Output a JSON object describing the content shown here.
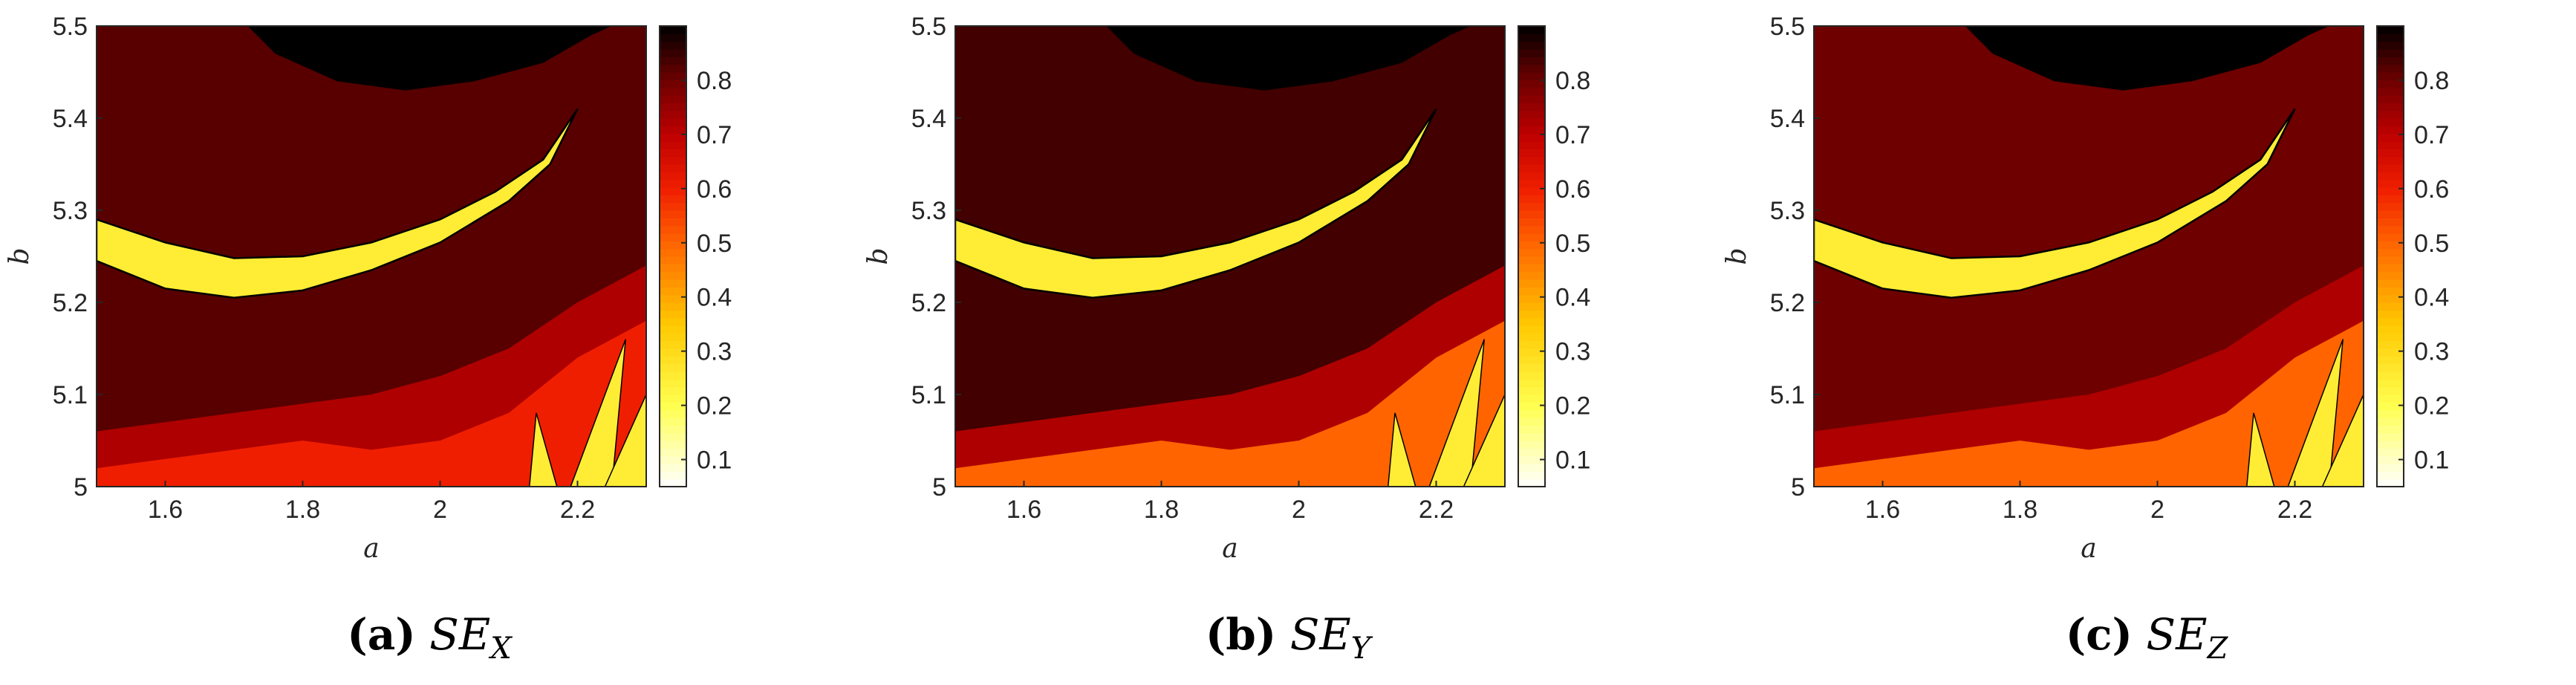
{
  "chart_data": [
    {
      "type": "heatmap",
      "panel_tag": "(a)",
      "measure_symbol": "SE",
      "measure_subscript": "X",
      "xlabel": "a",
      "ylabel": "b",
      "xlim": [
        1.5,
        2.3
      ],
      "ylim": [
        5.0,
        5.5
      ],
      "x_ticks": [
        "1.6",
        "1.8",
        "2",
        "2.2"
      ],
      "y_ticks": [
        "5",
        "5.1",
        "5.2",
        "5.3",
        "5.4",
        "5.5"
      ],
      "colorbar": {
        "range": [
          0.05,
          0.9
        ],
        "ticks": [
          "0.1",
          "0.2",
          "0.3",
          "0.4",
          "0.5",
          "0.6",
          "0.7",
          "0.8"
        ],
        "colormap": "hot-reversed"
      },
      "regions": {
        "top_black_cap_value": 0.9,
        "background_value": 0.82,
        "lower_band_value": 0.72,
        "bottom_band_value": 0.6,
        "crescent_value": 0.25
      }
    },
    {
      "type": "heatmap",
      "panel_tag": "(b)",
      "measure_symbol": "SE",
      "measure_subscript": "Y",
      "xlabel": "a",
      "ylabel": "b",
      "xlim": [
        1.5,
        2.3
      ],
      "ylim": [
        5.0,
        5.5
      ],
      "x_ticks": [
        "1.6",
        "1.8",
        "2",
        "2.2"
      ],
      "y_ticks": [
        "5",
        "5.1",
        "5.2",
        "5.3",
        "5.4",
        "5.5"
      ],
      "colorbar": {
        "range": [
          0.05,
          0.9
        ],
        "ticks": [
          "0.1",
          "0.2",
          "0.3",
          "0.4",
          "0.5",
          "0.6",
          "0.7",
          "0.8"
        ],
        "colormap": "hot-reversed"
      },
      "regions": {
        "top_black_cap_value": 0.9,
        "background_value": 0.84,
        "lower_band_value": 0.72,
        "bottom_band_value": 0.5,
        "crescent_value": 0.25
      }
    },
    {
      "type": "heatmap",
      "panel_tag": "(c)",
      "measure_symbol": "SE",
      "measure_subscript": "Z",
      "xlabel": "a",
      "ylabel": "b",
      "xlim": [
        1.5,
        2.3
      ],
      "ylim": [
        5.0,
        5.5
      ],
      "x_ticks": [
        "1.6",
        "1.8",
        "2",
        "2.2"
      ],
      "y_ticks": [
        "5",
        "5.1",
        "5.2",
        "5.3",
        "5.4",
        "5.5"
      ],
      "colorbar": {
        "range": [
          0.05,
          0.9
        ],
        "ticks": [
          "0.1",
          "0.2",
          "0.3",
          "0.4",
          "0.5",
          "0.6",
          "0.7",
          "0.8"
        ],
        "colormap": "hot-reversed"
      },
      "regions": {
        "top_black_cap_value": 0.9,
        "background_value": 0.8,
        "lower_band_value": 0.72,
        "bottom_band_value": 0.5,
        "crescent_value": 0.25
      }
    }
  ],
  "colors": {
    "axis": "#262626",
    "black": "#000000",
    "dark_maroon": "#3a0000",
    "maroon": "#6b0000",
    "red_dark": "#9e0000",
    "red": "#d40000",
    "red_bright": "#ff2a00",
    "orange": "#ff8c00",
    "yellow": "#ffff40",
    "pale_yellow": "#ffffa0",
    "white": "#ffffff"
  }
}
